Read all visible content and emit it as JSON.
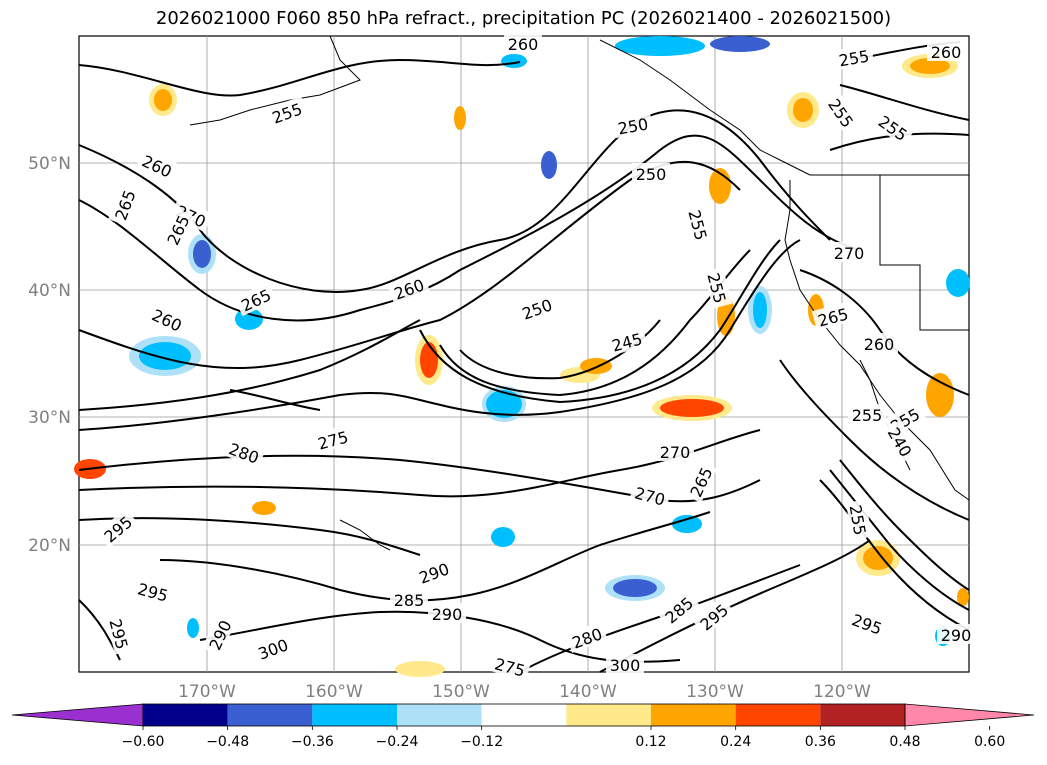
{
  "title": "2026021000 F060 850 hPa refract., precipitation PC (2026021400 - 2026021500)",
  "map": {
    "lat_ticks": [
      "20°N",
      "30°N",
      "40°N",
      "50°N"
    ],
    "lon_ticks": [
      "170°W",
      "160°W",
      "150°W",
      "140°W",
      "130°W",
      "120°W"
    ],
    "grid": true,
    "contour_labels": [
      "260",
      "255",
      "260",
      "265",
      "260",
      "270",
      "265",
      "255",
      "250",
      "255",
      "250",
      "260",
      "265",
      "260",
      "250",
      "245",
      "270",
      "265",
      "255",
      "260",
      "255",
      "255",
      "255",
      "255",
      "280",
      "275",
      "270",
      "270",
      "265",
      "295",
      "290",
      "295",
      "285",
      "290",
      "285",
      "295",
      "290",
      "295",
      "300",
      "280",
      "300",
      "275",
      "255",
      "295",
      "290",
      "240"
    ]
  },
  "colorbar": {
    "ticks": [
      "−0.60",
      "−0.48",
      "−0.36",
      "−0.24",
      "−0.12",
      "0.12",
      "0.24",
      "0.36",
      "0.48",
      "0.60"
    ],
    "colors": [
      "#9b30d0",
      "#00008b",
      "#3a5fd0",
      "#00bfff",
      "#aee0f8",
      "#ffffff",
      "#ffe98a",
      "#ffa500",
      "#ff4500",
      "#b22222",
      "#ff88aa"
    ],
    "extend": "both"
  }
}
